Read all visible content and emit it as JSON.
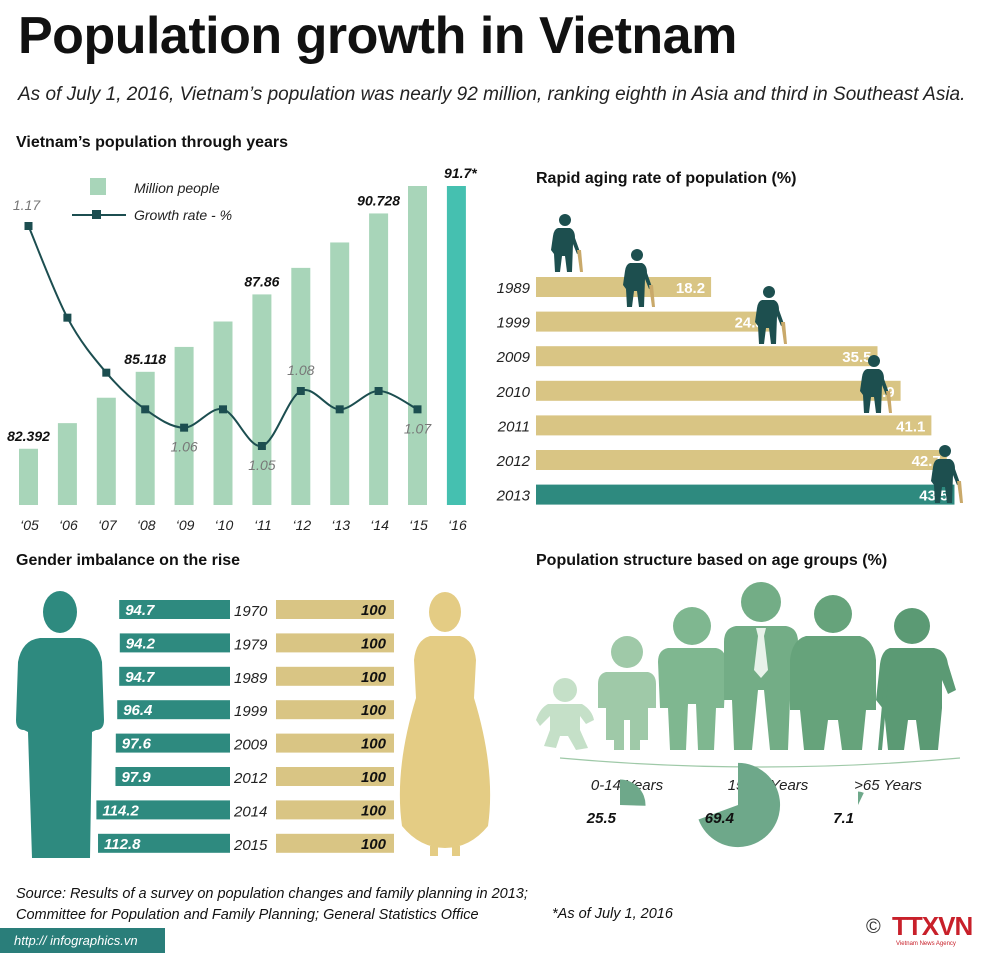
{
  "title": "Population growth in Vietnam",
  "subtitle": "As of July 1, 2016, Vietnam’s population was nearly 92 million, ranking eighth in Asia and third in Southeast Asia.",
  "colors": {
    "bar": "#a8d5b9",
    "bar_highlight": "#45c0b0",
    "line": "#1c4e50",
    "gold": "#d9c584",
    "teal": "#2e8a7f",
    "dark_teal": "#1d4f4f",
    "figure_green": "#8dbf9e"
  },
  "chart_data": [
    {
      "type": "bar",
      "title": "Vietnam’s population through years",
      "categories": [
        "‘05",
        "‘06",
        "‘07",
        "‘08",
        "‘09",
        "‘10",
        "‘11",
        "‘12",
        "‘13",
        "‘14",
        "‘15",
        "‘16"
      ],
      "series": [
        {
          "name": "Million people",
          "values": [
            82.392,
            83.3,
            84.2,
            85.118,
            86.0,
            86.9,
            87.86,
            88.8,
            89.7,
            90.728,
            91.7,
            91.7
          ]
        },
        {
          "name": "Growth rate - %",
          "values": [
            1.17,
            1.12,
            1.09,
            1.07,
            1.06,
            1.07,
            1.05,
            1.08,
            1.07,
            1.08,
            1.07,
            null
          ]
        }
      ],
      "bar_labels": [
        "82.392",
        "",
        "",
        "85.118",
        "",
        "",
        "87.86",
        "",
        "",
        "90.728",
        "",
        "91.7*"
      ],
      "line_labels": [
        "1.17",
        "",
        "",
        "",
        "1.06",
        "",
        "1.05",
        "1.08",
        "",
        "",
        "1.07",
        ""
      ]
    },
    {
      "type": "bar",
      "title": "Rapid aging rate of population  (%)",
      "categories": [
        "1989",
        "1999",
        "2009",
        "2010",
        "2011",
        "2012",
        "2013"
      ],
      "values": [
        18.2,
        24.3,
        35.5,
        37.9,
        41.1,
        42.7,
        43.5
      ],
      "labels": [
        "18.2",
        "24.3",
        "35.5",
        "37.9",
        "41.1",
        "42.7",
        "43.5"
      ]
    },
    {
      "type": "bar",
      "title": "Gender imbalance on the rise",
      "categories": [
        "1970",
        "1979",
        "1989",
        "1999",
        "2009",
        "2012",
        "2014",
        "2015"
      ],
      "series": [
        {
          "values": [
            94.7,
            94.2,
            94.7,
            96.4,
            97.6,
            97.9,
            114.2,
            112.8
          ]
        },
        {
          "values": [
            100,
            100,
            100,
            100,
            100,
            100,
            100,
            100
          ]
        }
      ],
      "male_labels": [
        "94.7",
        "94.2",
        "94.7",
        "96.4",
        "97.6",
        "97.9",
        "114.2",
        "112.8"
      ],
      "female_labels": [
        "100",
        "100",
        "100",
        "100",
        "100",
        "100",
        "100",
        "100"
      ]
    },
    {
      "type": "pie",
      "title": "Population structure based on age groups (%)",
      "categories": [
        "0-14 Years",
        "15-64 Years",
        ">65 Years"
      ],
      "values": [
        25.5,
        69.4,
        7.1
      ],
      "labels": [
        "25.5",
        "69.4",
        "7.1"
      ]
    }
  ],
  "legend": {
    "bars": "Million people",
    "line": "Growth rate - %"
  },
  "source": [
    "Source: Results of a survey on population changes and family planning in 2013;",
    "Committee for Population and Family Planning; General Statistics Office"
  ],
  "note": "*As of July 1, 2016",
  "url": "http:// infographics.vn",
  "logo": {
    "copyright": "©",
    "name": "TTXVN",
    "tagline": "Vietnam News Agency"
  }
}
